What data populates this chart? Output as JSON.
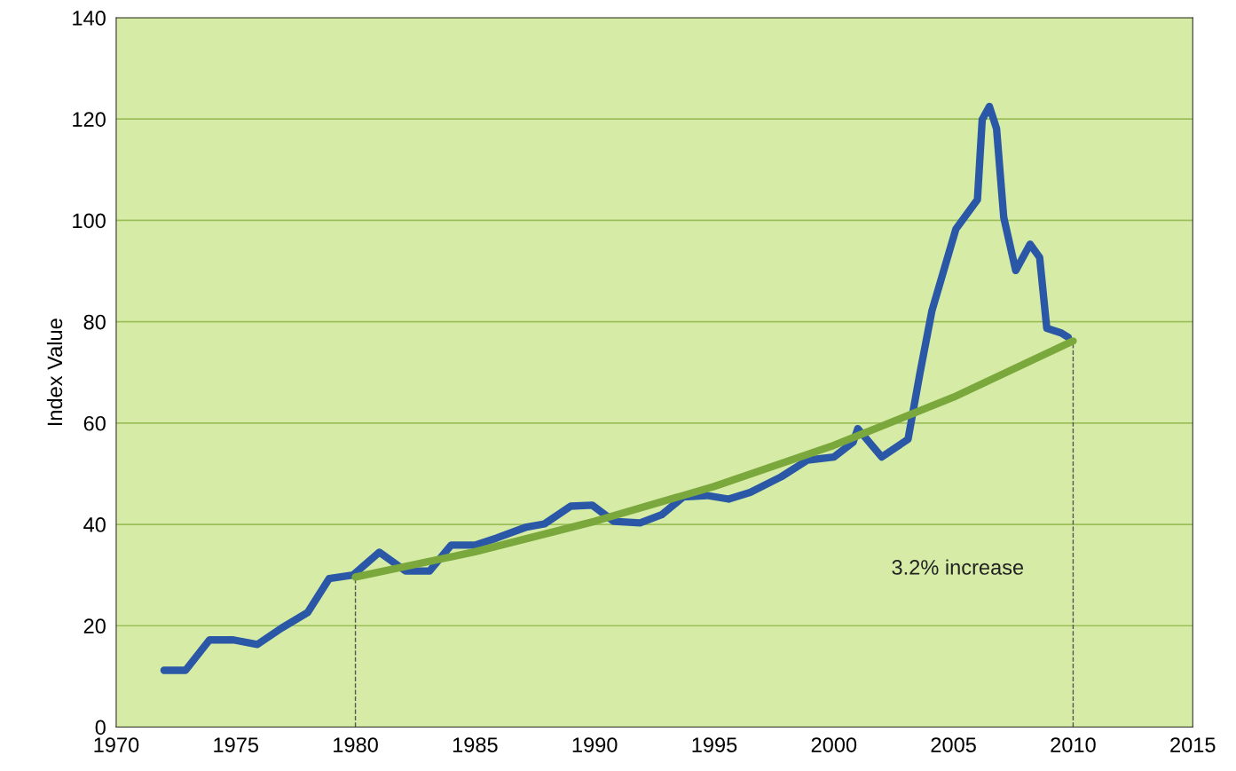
{
  "chart_data": {
    "type": "line",
    "ylabel": "Index Value",
    "xlim": [
      1970,
      2015
    ],
    "xticks": [
      1970,
      1975,
      1980,
      1985,
      1990,
      1995,
      2000,
      2005,
      2010,
      2015
    ],
    "ylim": [
      0,
      140
    ],
    "yticks": [
      0,
      20,
      40,
      60,
      80,
      100,
      120,
      140
    ],
    "grid": "y",
    "line_style": "solid",
    "series": [
      {
        "color": "#2a58a6",
        "x": [
          1972.0,
          1972.9,
          1973.9,
          1974.9,
          1975.9,
          1976.9,
          1978.0,
          1978.9,
          1979.9,
          1981.0,
          1982.1,
          1983.1,
          1984.0,
          1985.0,
          1985.9,
          1987.1,
          1987.9,
          1989.0,
          1989.9,
          1990.8,
          1991.9,
          1992.8,
          1993.7,
          1994.7,
          1995.6,
          1996.5,
          1997.8,
          1998.9,
          2000.0,
          2000.8,
          2001.0,
          2002.0,
          2003.1,
          2003.6,
          2004.1,
          2005.1,
          2006.0,
          2006.2,
          2006.5,
          2006.8,
          2007.1,
          2007.6,
          2008.2,
          2008.6,
          2008.9,
          2009.5,
          2009.8
        ],
        "values": [
          11.2,
          11.2,
          17.2,
          17.2,
          16.3,
          19.5,
          22.6,
          29.3,
          30.0,
          34.5,
          30.8,
          30.8,
          35.9,
          35.9,
          37.3,
          39.4,
          40.1,
          43.6,
          43.8,
          40.6,
          40.3,
          41.9,
          45.4,
          45.7,
          45.0,
          46.3,
          49.4,
          52.7,
          53.3,
          56.2,
          58.9,
          53.3,
          56.8,
          69.9,
          82.2,
          98.3,
          104.1,
          119.9,
          122.5,
          118.1,
          100.6,
          90.1,
          95.3,
          92.7,
          78.7,
          77.8,
          76.9
        ]
      },
      {
        "color": "#7ba83c",
        "x": [
          1980,
          1985,
          1990,
          1995,
          2000,
          2005,
          2010
        ],
        "values": [
          29.6,
          34.6,
          40.6,
          47.5,
          55.6,
          65.1,
          76.2
        ]
      }
    ],
    "ref_lines": [
      {
        "axis": "x",
        "value": 1980,
        "line_style": "dashed",
        "color": "#555555"
      },
      {
        "axis": "x",
        "value": 2010,
        "line_style": "dashed",
        "color": "#555555"
      }
    ],
    "annotations": [
      "3.2% increase"
    ]
  }
}
